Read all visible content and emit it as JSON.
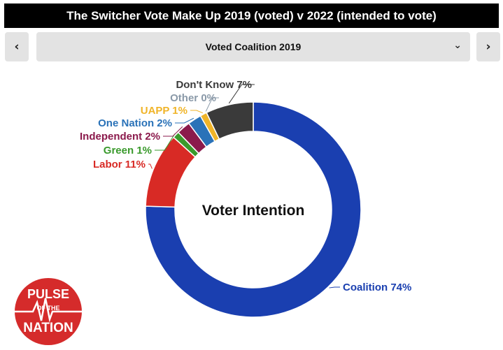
{
  "header": {
    "title": "The Switcher Vote Make Up 2019 (voted) v 2022 (intended to vote)"
  },
  "nav": {
    "prev_icon": "‹",
    "next_icon": "›"
  },
  "selector": {
    "value": "Voted Coalition 2019",
    "chevron": "⌄"
  },
  "chart_data": {
    "type": "pie",
    "subtype": "donut",
    "center_label": "Voter Intention",
    "slices": [
      {
        "label": "Coalition",
        "value": 74,
        "display": "Coalition 74%",
        "color": "#1a3fb0"
      },
      {
        "label": "Labor",
        "value": 11,
        "display": "Labor 11%",
        "color": "#d82a25"
      },
      {
        "label": "Green",
        "value": 1,
        "display": "Green 1%",
        "color": "#3a9a2c"
      },
      {
        "label": "Independent",
        "value": 2,
        "display": "Independent 2%",
        "color": "#8b1a4c"
      },
      {
        "label": "One Nation",
        "value": 2,
        "display": "One Nation 2%",
        "color": "#2a72b8"
      },
      {
        "label": "UAPP",
        "value": 1,
        "display": "UAPP 1%",
        "color": "#f0b428"
      },
      {
        "label": "Other",
        "value": 0,
        "display": "Other 0%",
        "color": "#8a99a8"
      },
      {
        "label": "Don't Know",
        "value": 7,
        "display": "Don't Know 7%",
        "color": "#3a3a3a"
      }
    ]
  },
  "logo": {
    "line1": "PULSE",
    "line2": "OF THE",
    "line3": "NATION"
  }
}
